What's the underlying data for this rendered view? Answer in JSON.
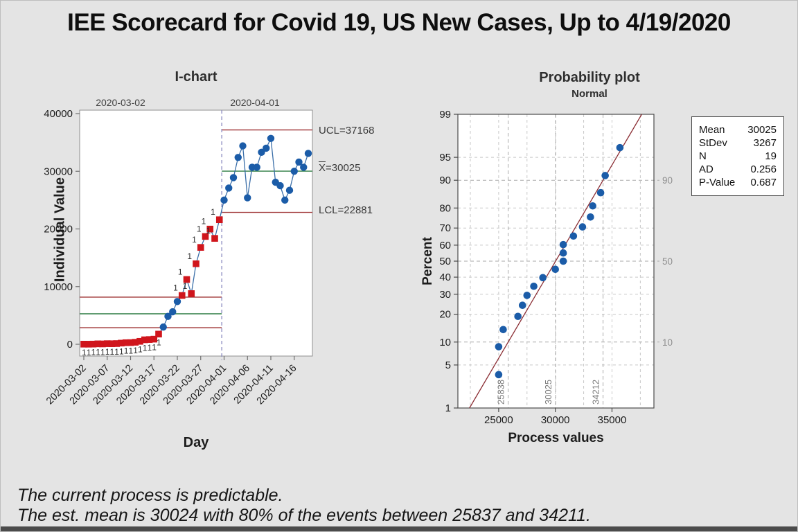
{
  "page": {
    "title": "IEE Scorecard for Covid 19, US New Cases, Up to 4/19/2020",
    "footer_line1": "The current process is predictable.",
    "footer_line2": "The est. mean is 30024 with 80% of the events between 25837 and 34211.",
    "colors": {
      "background": "#E4E4E4",
      "point_blue": "#1B5CA8",
      "data_line_blue": "#3A6EA8",
      "out_of_control_red": "#D0151C",
      "limit_line_red": "#9E3132",
      "center_line_green": "#2C7C42",
      "stage_divider_blue": "#8A8AC0",
      "fit_line_red": "#8B2E34",
      "grid_gray": "#C7C7C7",
      "reference_gray": "#A9A9A9"
    }
  },
  "chart_data": [
    {
      "type": "line",
      "name": "i-chart",
      "title": "I-chart",
      "xlabel": "Day",
      "ylabel": "Individual Value",
      "ylim": [
        -2000,
        40700
      ],
      "yticks": [
        0,
        10000,
        20000,
        30000,
        40000
      ],
      "xtick_labels": [
        "2020-03-02",
        "2020-03-07",
        "2020-03-12",
        "2020-03-17",
        "2020-03-22",
        "2020-03-27",
        "2020-04-01",
        "2020-04-06",
        "2020-04-11",
        "2020-04-16"
      ],
      "xtick_step_days": 5,
      "out_of_control_flag": "1",
      "annotations": {
        "ucl": "UCL=37168",
        "xbar_x": "X",
        "xbar_value": "=30025",
        "lcl": "LCL=22881"
      },
      "stages": [
        {
          "label": "2020-03-02",
          "ucl": 8170,
          "center": 5285,
          "lcl": 2880,
          "values": [
            23,
            19,
            33,
            77,
            63,
            105,
            95,
            121,
            200,
            271,
            287,
            351,
            511,
            777,
            823,
            887,
            1766,
            2988,
            4835,
            5632,
            7412,
            8459,
            11236,
            8789,
            13963,
            16797,
            18695,
            19979,
            18360,
            21595
          ]
        },
        {
          "label": "2020-04-01",
          "ucl": 37168,
          "center": 30025,
          "lcl": 22881,
          "values": [
            25000,
            27100,
            28900,
            32400,
            34400,
            25400,
            30700,
            30700,
            33300,
            34000,
            35700,
            28100,
            27500,
            25000,
            26700,
            30000,
            31600,
            30700,
            33100
          ]
        }
      ]
    },
    {
      "type": "scatter",
      "name": "probability-plot",
      "title": "Probability plot",
      "subtitle": "Normal",
      "xlabel": "Process values",
      "ylabel": "Percent",
      "xlim": [
        21400,
        38700
      ],
      "xticks": [
        25000,
        30000,
        35000
      ],
      "x_gridlines": [
        22500,
        25000,
        27500,
        30000,
        32500,
        35000,
        37500
      ],
      "percent_ticks": [
        1,
        5,
        10,
        20,
        30,
        40,
        50,
        60,
        70,
        80,
        90,
        95,
        99
      ],
      "grid_percents": [
        5,
        20,
        30,
        40,
        60,
        70,
        80,
        95
      ],
      "references": [
        {
          "percent": 10,
          "value": 25838
        },
        {
          "percent": 50,
          "value": 30025
        },
        {
          "percent": 90,
          "value": 34212
        }
      ],
      "mean": 30025,
      "stdev": 3267,
      "n": 19,
      "values": [
        25000,
        27100,
        28900,
        32400,
        34400,
        25400,
        30700,
        30700,
        33300,
        34000,
        35700,
        28100,
        27500,
        25000,
        26700,
        30000,
        31600,
        30700,
        33100
      ],
      "stats_table": [
        [
          "Mean",
          "30025"
        ],
        [
          "StDev",
          "3267"
        ],
        [
          "N",
          "19"
        ],
        [
          "AD",
          "0.256"
        ],
        [
          "P-Value",
          "0.687"
        ]
      ]
    }
  ]
}
